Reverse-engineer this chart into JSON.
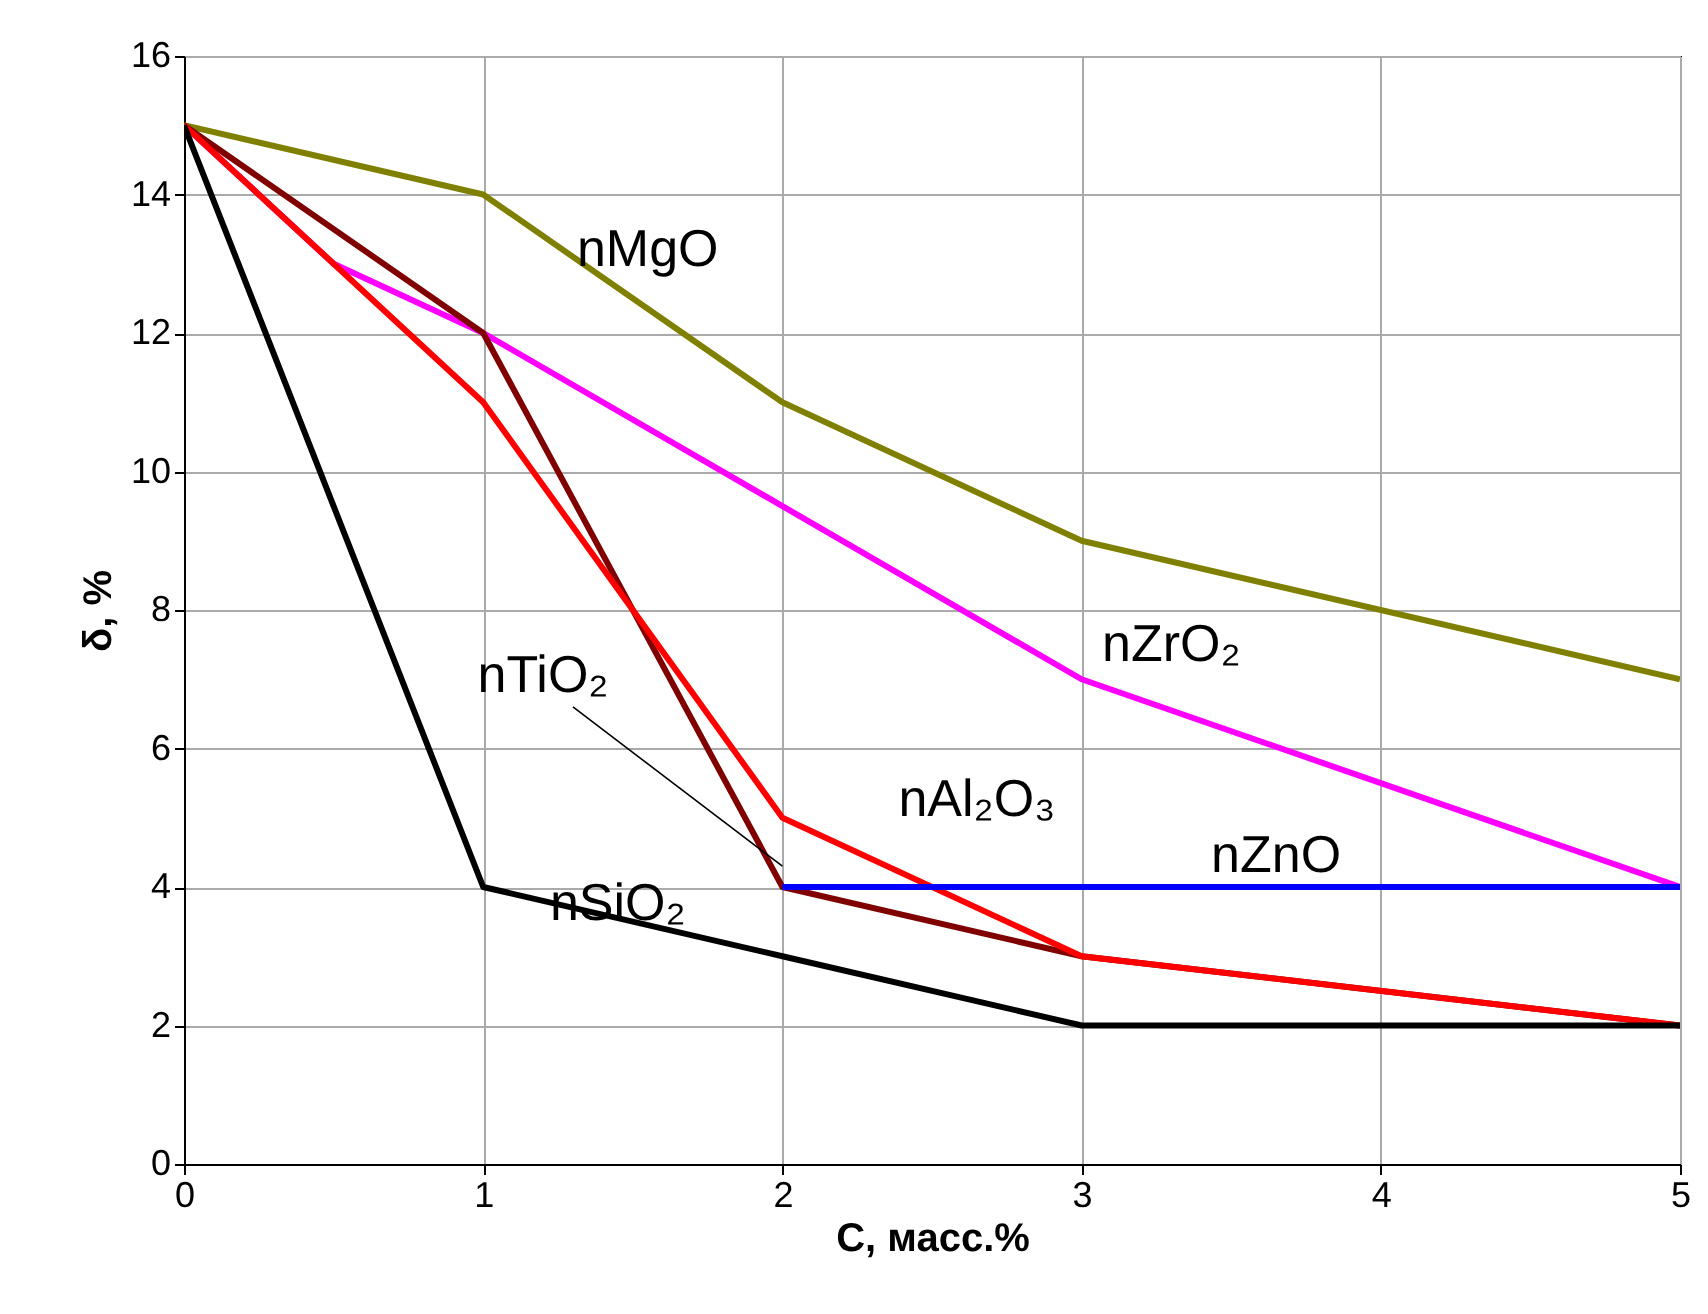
{
  "chart_data": {
    "type": "line",
    "xlabel": "C, масс.%",
    "ylabel": "δ, %",
    "xlim": [
      0,
      5
    ],
    "xticks": [
      0,
      1,
      2,
      3,
      4,
      5
    ],
    "ylim": [
      0,
      16
    ],
    "yticks": [
      0,
      2,
      4,
      6,
      8,
      10,
      12,
      14,
      16
    ],
    "grid": true,
    "legend": false,
    "marker": "none",
    "line_style": "solid",
    "series": [
      {
        "name": "nMgO",
        "color": "#808000",
        "x": [
          0,
          1,
          2,
          3,
          5
        ],
        "values": [
          15,
          14,
          11,
          9,
          7
        ]
      },
      {
        "name": "nZrO₂",
        "color": "#ff00ff",
        "x": [
          0,
          0.5,
          1,
          3,
          5
        ],
        "values": [
          15,
          13,
          12,
          7,
          4
        ]
      },
      {
        "name": "nTiO₂",
        "color": "#800000",
        "x": [
          0,
          1,
          2,
          3,
          5
        ],
        "values": [
          15,
          12,
          4,
          3,
          2
        ]
      },
      {
        "name": "nAl₂O₃",
        "color": "#ff0000",
        "x": [
          0,
          0.5,
          1,
          2,
          3,
          5
        ],
        "values": [
          15,
          13,
          11,
          5,
          3,
          2
        ]
      },
      {
        "name": "nZnO",
        "color": "#0000ff",
        "x": [
          2,
          5
        ],
        "values": [
          4,
          4
        ]
      },
      {
        "name": "nSiO₂",
        "color": "#000000",
        "x": [
          0,
          1,
          2,
          3,
          5
        ],
        "values": [
          15,
          4,
          3,
          2,
          2
        ]
      }
    ]
  }
}
